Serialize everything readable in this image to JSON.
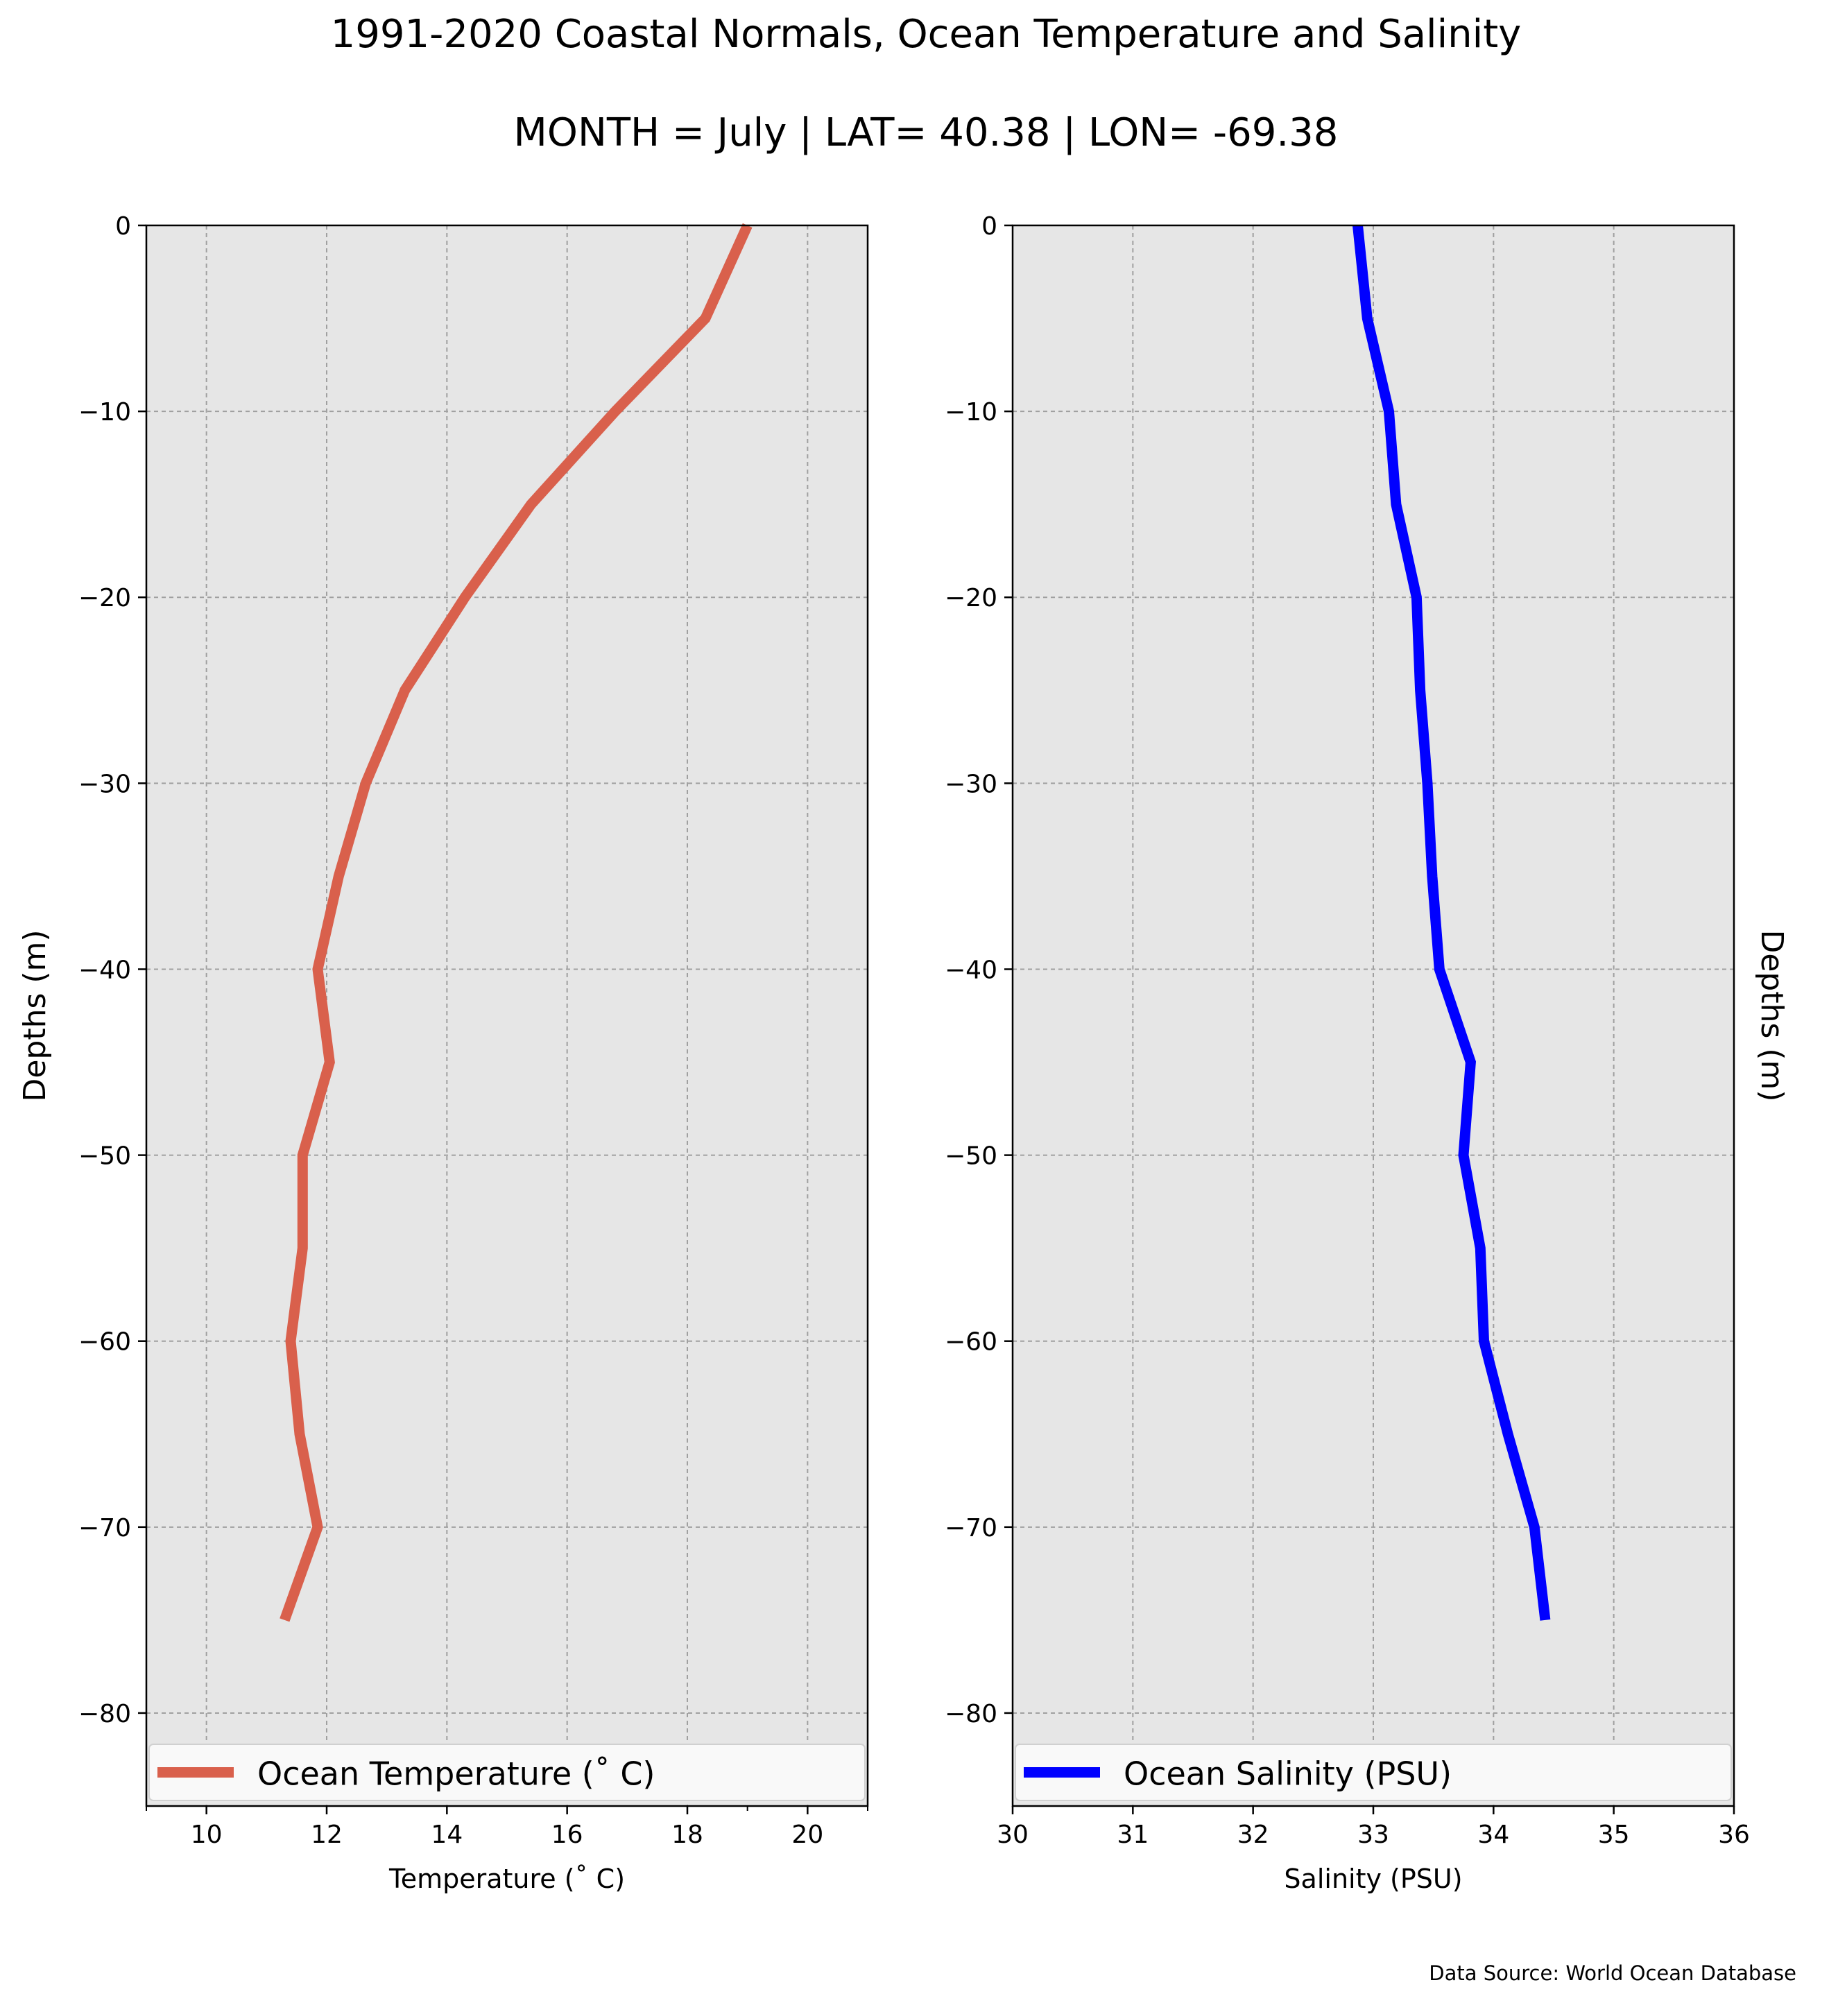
{
  "title": "1991-2020 Coastal Normals, Ocean Temperature and Salinity",
  "subtitle": "MONTH = July | LAT= 40.38 | LON= -69.38",
  "source": "Data Source: World Ocean Database",
  "chart_data": [
    {
      "type": "line",
      "xlabel": "Temperature ($^\\circ$C)",
      "xlabel_display": "Temperature (˚ C)",
      "ylabel": "Depths (m)",
      "xlim": [
        9,
        21
      ],
      "ylim": [
        -85,
        0
      ],
      "xticks": [
        10,
        12,
        14,
        16,
        18,
        20
      ],
      "xtick_labels": [
        "10",
        "12",
        "14",
        "16",
        "18",
        "20"
      ],
      "yticks": [
        0,
        -10,
        -20,
        -30,
        -40,
        -50,
        -60,
        -70,
        -80
      ],
      "ytick_labels": [
        "0",
        "−10",
        "−20",
        "−30",
        "−40",
        "−50",
        "−60",
        "−70",
        "−80"
      ],
      "grid": true,
      "legend_position": "bottom",
      "ylabel_side": "left",
      "series": [
        {
          "name": "Ocean Temperature (˚ C)",
          "color": "#d9604c",
          "x": [
            19.0,
            18.3,
            16.8,
            15.4,
            14.3,
            13.3,
            12.65,
            12.2,
            11.85,
            12.05,
            11.6,
            11.6,
            11.4,
            11.55,
            11.85,
            11.3
          ],
          "y": [
            0,
            -5,
            -10,
            -15,
            -20,
            -25,
            -30,
            -35,
            -40,
            -45,
            -50,
            -55,
            -60,
            -65,
            -70,
            -75
          ]
        }
      ],
      "plot_background": "#e6e6e6"
    },
    {
      "type": "line",
      "xlabel": "Salinity (PSU)",
      "ylabel": "Depths (m)",
      "xlim": [
        30,
        36
      ],
      "ylim": [
        -85,
        0
      ],
      "xticks": [
        30,
        31,
        32,
        33,
        34,
        35,
        36
      ],
      "xtick_labels": [
        "30",
        "31",
        "32",
        "33",
        "34",
        "35",
        "36"
      ],
      "yticks": [
        0,
        -10,
        -20,
        -30,
        -40,
        -50,
        -60,
        -70,
        -80
      ],
      "ytick_labels": [
        "0",
        "−10",
        "−20",
        "−30",
        "−40",
        "−50",
        "−60",
        "−70",
        "−80"
      ],
      "grid": true,
      "legend_position": "bottom",
      "ylabel_side": "right",
      "series": [
        {
          "name": "Ocean Salinity (PSU)",
          "color": "#0000ff",
          "x": [
            32.87,
            32.95,
            33.13,
            33.19,
            33.36,
            33.39,
            33.45,
            33.49,
            33.55,
            33.81,
            33.75,
            33.89,
            33.92,
            34.12,
            34.34,
            34.43
          ],
          "y": [
            0,
            -5,
            -10,
            -15,
            -20,
            -25,
            -30,
            -35,
            -40,
            -45,
            -50,
            -55,
            -60,
            -65,
            -70,
            -75
          ]
        }
      ],
      "plot_background": "#e6e6e6"
    }
  ]
}
